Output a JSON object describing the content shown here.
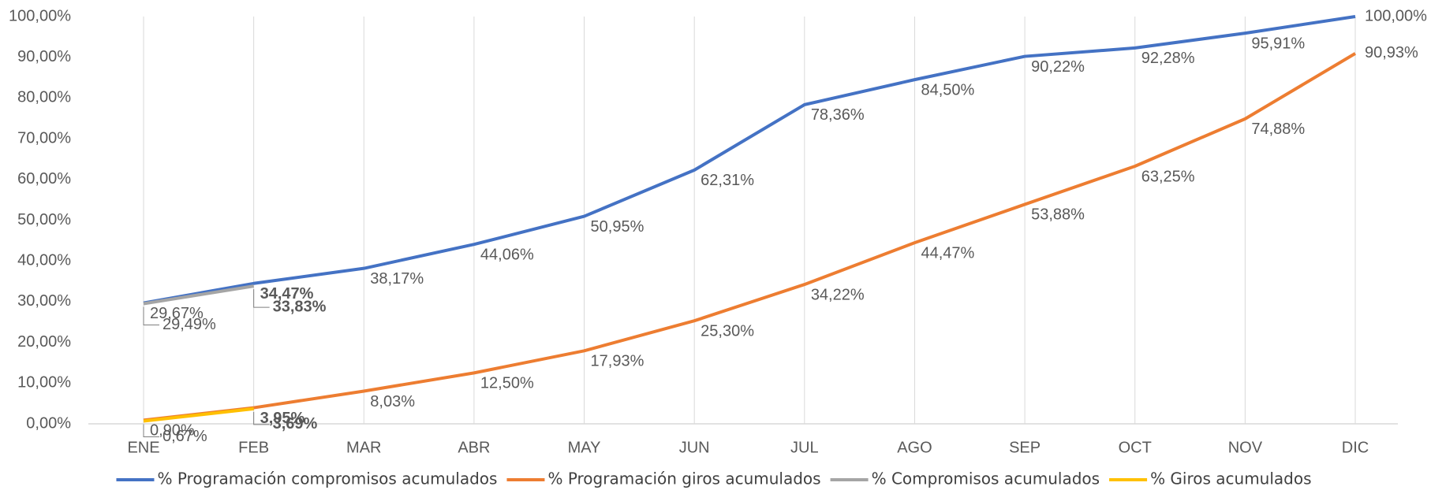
{
  "chart_data": {
    "type": "line",
    "categories": [
      "ENE",
      "FEB",
      "MAR",
      "ABR",
      "MAY",
      "JUN",
      "JUL",
      "AGO",
      "SEP",
      "OCT",
      "NOV",
      "DIC"
    ],
    "series": [
      {
        "name": "% Programación compromisos acumulados",
        "color": "#4472c4",
        "values": [
          29.67,
          34.47,
          38.17,
          44.06,
          50.95,
          62.31,
          78.36,
          84.5,
          90.22,
          92.28,
          95.91,
          100.0
        ],
        "value_labels": [
          "29,67%",
          "34,47%",
          "38,17%",
          "44,06%",
          "50,95%",
          "62,31%",
          "78,36%",
          "84,50%",
          "90,22%",
          "92,28%",
          "95,91%",
          "100,00%"
        ]
      },
      {
        "name": "% Programación giros acumulados",
        "color": "#ed7d31",
        "values": [
          0.9,
          3.95,
          8.03,
          12.5,
          17.93,
          25.3,
          34.22,
          44.47,
          53.88,
          63.25,
          74.88,
          90.93
        ],
        "value_labels": [
          "0,90%",
          "3,95%",
          "8,03%",
          "12,50%",
          "17,93%",
          "25,30%",
          "34,22%",
          "44,47%",
          "53,88%",
          "63,25%",
          "74,88%",
          "90,93%"
        ]
      },
      {
        "name": "% Compromisos acumulados",
        "color": "#a5a5a5",
        "values": [
          29.49,
          33.83,
          null,
          null,
          null,
          null,
          null,
          null,
          null,
          null,
          null,
          null
        ],
        "value_labels": [
          "29,49%",
          "33,83%",
          null,
          null,
          null,
          null,
          null,
          null,
          null,
          null,
          null,
          null
        ]
      },
      {
        "name": "% Giros acumulados",
        "color": "#ffc000",
        "values": [
          0.67,
          3.69,
          null,
          null,
          null,
          null,
          null,
          null,
          null,
          null,
          null,
          null
        ],
        "value_labels": [
          "0,67%",
          "3,69%",
          null,
          null,
          null,
          null,
          null,
          null,
          null,
          null,
          null,
          null
        ]
      }
    ],
    "ylim": [
      0,
      100
    ],
    "yticks": [
      {
        "value": 0,
        "label": "0,00%"
      },
      {
        "value": 10,
        "label": "10,00%"
      },
      {
        "value": 20,
        "label": "20,00%"
      },
      {
        "value": 30,
        "label": "30,00%"
      },
      {
        "value": 40,
        "label": "40,00%"
      },
      {
        "value": 50,
        "label": "50,00%"
      },
      {
        "value": 60,
        "label": "60,00%"
      },
      {
        "value": 70,
        "label": "70,00%"
      },
      {
        "value": 80,
        "label": "80,00%"
      },
      {
        "value": 90,
        "label": "90,00%"
      },
      {
        "value": 100,
        "label": "100,00%"
      }
    ],
    "grid": true
  }
}
